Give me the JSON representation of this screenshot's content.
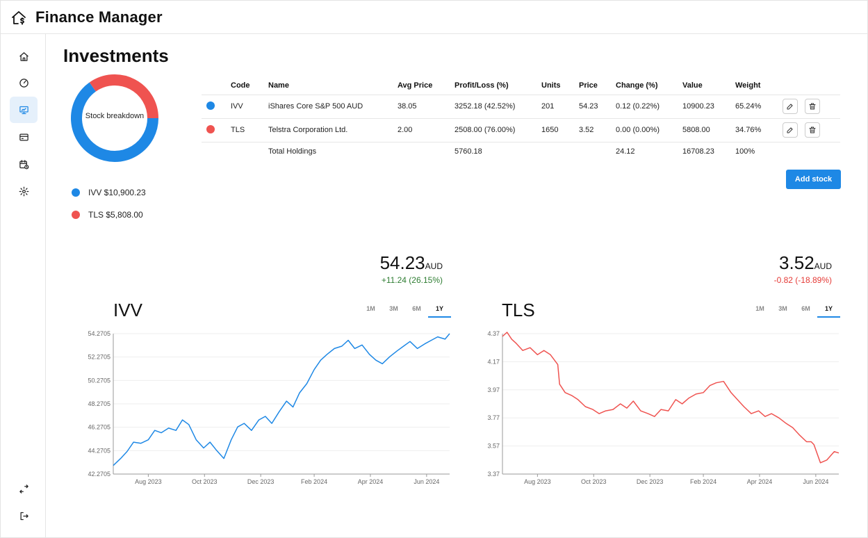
{
  "app": {
    "title": "Finance Manager"
  },
  "sidebar": {
    "items": [
      {
        "icon": "home-icon"
      },
      {
        "icon": "dashboard-gauge-icon"
      },
      {
        "icon": "investments-monitor-icon",
        "active": true
      },
      {
        "icon": "credit-card-icon"
      },
      {
        "icon": "calendar-clock-icon"
      },
      {
        "icon": "settings-gear-icon"
      }
    ],
    "bottom": [
      {
        "icon": "transfer-arrows-icon"
      },
      {
        "icon": "logout-icon"
      }
    ]
  },
  "page": {
    "title": "Investments"
  },
  "breakdown": {
    "label": "Stock breakdown",
    "slices": [
      {
        "code": "IVV",
        "value": 10900.23,
        "color": "#1e88e5",
        "legend": "IVV $10,900.23"
      },
      {
        "code": "TLS",
        "value": 5808.0,
        "color": "#ef5350",
        "legend": "TLS $5,808.00"
      }
    ]
  },
  "table": {
    "headers": [
      "Code",
      "Name",
      "Avg Price",
      "Profit/Loss (%)",
      "Units",
      "Price",
      "Change (%)",
      "Value",
      "Weight"
    ],
    "rows": [
      {
        "color": "#1e88e5",
        "code": "IVV",
        "name": "iShares Core S&P 500 AUD",
        "avg_price": "38.05",
        "pl": "3252.18 (42.52%)",
        "pl_sign": "pos",
        "units": "201",
        "price": "54.23",
        "change": "0.12 (0.22%)",
        "change_sign": "pos",
        "value": "10900.23",
        "weight": "65.24%"
      },
      {
        "color": "#ef5350",
        "code": "TLS",
        "name": "Telstra Corporation Ltd.",
        "avg_price": "2.00",
        "pl": "2508.00 (76.00%)",
        "pl_sign": "pos",
        "units": "1650",
        "price": "3.52",
        "change": "0.00 (0.00%)",
        "change_sign": "neg",
        "value": "5808.00",
        "weight": "34.76%"
      }
    ],
    "total": {
      "label": "Total Holdings",
      "pl": "5760.18",
      "change": "24.12",
      "value": "16708.23",
      "weight": "100%"
    }
  },
  "add_stock_label": "Add stock",
  "charts": [
    {
      "code": "IVV",
      "price": "54.23",
      "currency": "AUD",
      "change": "+11.24 (26.15%)",
      "change_color": "#2e7d32",
      "ranges": [
        "1M",
        "3M",
        "6M",
        "1Y"
      ],
      "active_range": "1Y"
    },
    {
      "code": "TLS",
      "price": "3.52",
      "currency": "AUD",
      "change": "-0.82 (-18.89%)",
      "change_color": "#e53935",
      "ranges": [
        "1M",
        "3M",
        "6M",
        "1Y"
      ],
      "active_range": "1Y"
    }
  ],
  "chart_data": [
    {
      "type": "line",
      "title": "IVV",
      "color": "#1e88e5",
      "x_ticks": [
        "Aug 2023",
        "Oct 2023",
        "Dec 2023",
        "Feb 2024",
        "Apr 2024",
        "Jun 2024"
      ],
      "y_ticks": [
        "54.2705",
        "52.2705",
        "50.2705",
        "48.2705",
        "46.2705",
        "44.2705",
        "42.2705"
      ],
      "ylim": [
        42.2705,
        54.2705
      ],
      "x_range_days": [
        0,
        365
      ],
      "x_tick_days": [
        38,
        99,
        160,
        218,
        279,
        340
      ],
      "x_days": [
        0,
        8,
        15,
        22,
        30,
        38,
        45,
        52,
        60,
        68,
        75,
        82,
        90,
        98,
        105,
        112,
        120,
        128,
        135,
        142,
        150,
        158,
        165,
        172,
        180,
        188,
        195,
        202,
        210,
        218,
        225,
        232,
        240,
        248,
        255,
        262,
        270,
        278,
        285,
        292,
        300,
        308,
        315,
        322,
        330,
        338,
        345,
        352,
        360,
        365
      ],
      "values": [
        43.0,
        43.6,
        44.2,
        45.0,
        44.9,
        45.2,
        46.0,
        45.8,
        46.2,
        46.0,
        46.9,
        46.5,
        45.2,
        44.5,
        45.0,
        44.3,
        43.6,
        45.2,
        46.3,
        46.6,
        46.0,
        46.9,
        47.2,
        46.6,
        47.6,
        48.5,
        48.0,
        49.2,
        50.0,
        51.2,
        52.0,
        52.5,
        53.0,
        53.2,
        53.7,
        53.0,
        53.3,
        52.5,
        52.0,
        51.7,
        52.3,
        52.8,
        53.2,
        53.6,
        53.0,
        53.4,
        53.7,
        54.0,
        53.8,
        54.27
      ]
    },
    {
      "type": "line",
      "title": "TLS",
      "color": "#ef5350",
      "x_ticks": [
        "Aug 2023",
        "Oct 2023",
        "Dec 2023",
        "Feb 2024",
        "Apr 2024",
        "Jun 2024"
      ],
      "y_ticks": [
        "4.37",
        "4.17",
        "3.97",
        "3.77",
        "3.57",
        "3.37"
      ],
      "ylim": [
        3.37,
        4.37
      ],
      "x_range_days": [
        0,
        365
      ],
      "x_tick_days": [
        38,
        99,
        160,
        218,
        279,
        340
      ],
      "x_days": [
        0,
        5,
        10,
        15,
        22,
        30,
        38,
        45,
        52,
        60,
        62,
        68,
        75,
        82,
        90,
        98,
        105,
        112,
        120,
        128,
        135,
        142,
        150,
        158,
        165,
        172,
        180,
        188,
        195,
        202,
        210,
        218,
        225,
        232,
        240,
        248,
        255,
        262,
        270,
        278,
        285,
        292,
        300,
        308,
        315,
        322,
        330,
        335,
        338,
        345,
        352,
        360,
        365
      ],
      "values": [
        4.35,
        4.38,
        4.33,
        4.3,
        4.25,
        4.27,
        4.22,
        4.25,
        4.22,
        4.15,
        4.01,
        3.95,
        3.93,
        3.9,
        3.85,
        3.83,
        3.8,
        3.82,
        3.83,
        3.87,
        3.84,
        3.89,
        3.82,
        3.8,
        3.78,
        3.83,
        3.82,
        3.9,
        3.87,
        3.91,
        3.94,
        3.95,
        4.0,
        4.02,
        4.03,
        3.95,
        3.9,
        3.85,
        3.8,
        3.82,
        3.78,
        3.8,
        3.77,
        3.73,
        3.7,
        3.65,
        3.6,
        3.6,
        3.58,
        3.45,
        3.47,
        3.53,
        3.52
      ]
    }
  ]
}
